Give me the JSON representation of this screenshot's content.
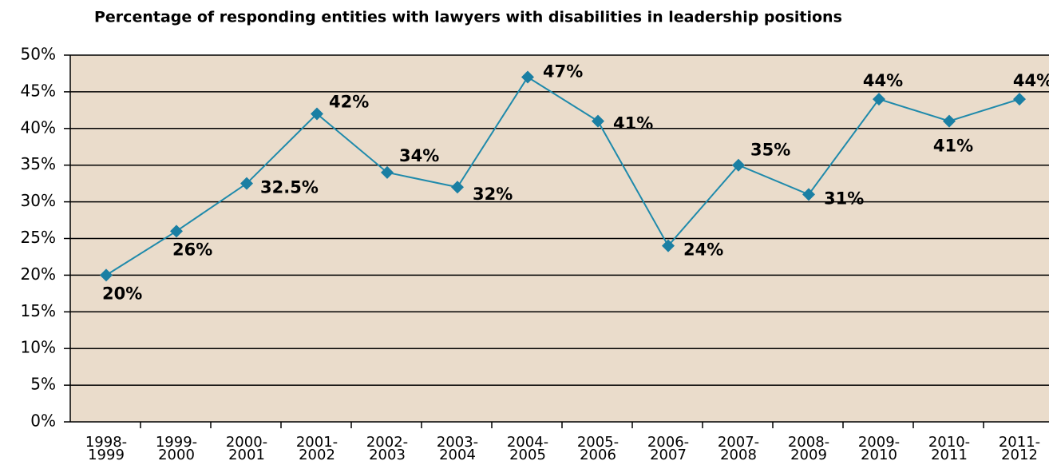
{
  "chart_data": {
    "type": "line",
    "title": "Percentage of responding entities with lawyers with disabilities in leadership positions",
    "categories": [
      [
        "1998-",
        "1999"
      ],
      [
        "1999-",
        "2000"
      ],
      [
        "2000-",
        "2001"
      ],
      [
        "2001-",
        "2002"
      ],
      [
        "2002-",
        "2003"
      ],
      [
        "2003-",
        "2004"
      ],
      [
        "2004-",
        "2005"
      ],
      [
        "2005-",
        "2006"
      ],
      [
        "2006-",
        "2007"
      ],
      [
        "2007-",
        "2008"
      ],
      [
        "2008-",
        "2009"
      ],
      [
        "2009-",
        "2010"
      ],
      [
        "2010-",
        "2011"
      ],
      [
        "2011-",
        "2012"
      ]
    ],
    "series": [
      {
        "color": "#1f8aab",
        "values": [
          20,
          26,
          32.5,
          42,
          34,
          32,
          47,
          41,
          24,
          35,
          31,
          44,
          41,
          44
        ],
        "value_labels": [
          "20%",
          "26%",
          "32.5%",
          "42%",
          "34%",
          "32%",
          "47%",
          "41%",
          "24%",
          "35%",
          "31%",
          "44%",
          "41%",
          "44%"
        ]
      }
    ],
    "ylim": [
      0,
      50
    ],
    "yticks": [
      {
        "value": 0,
        "label": "0%"
      },
      {
        "value": 5,
        "label": "5%"
      },
      {
        "value": 10,
        "label": "10%"
      },
      {
        "value": 15,
        "label": "15%"
      },
      {
        "value": 20,
        "label": "20%"
      },
      {
        "value": 25,
        "label": "25%"
      },
      {
        "value": 30,
        "label": "30%"
      },
      {
        "value": 35,
        "label": "35%"
      },
      {
        "value": 40,
        "label": "40%"
      },
      {
        "value": 45,
        "label": "45%"
      },
      {
        "value": 50,
        "label": "50%"
      }
    ],
    "grid": true,
    "plot_background": "#eadccb"
  }
}
